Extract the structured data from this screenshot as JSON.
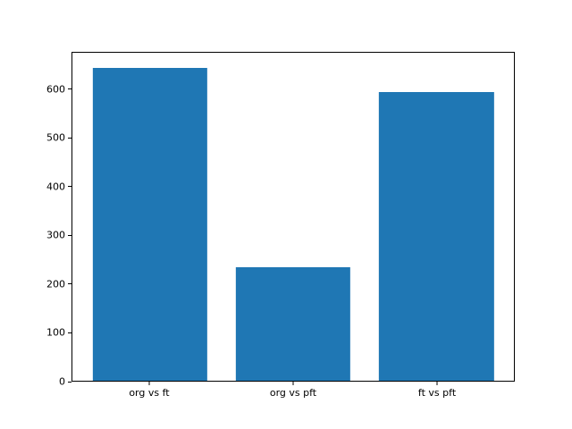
{
  "figure": {
    "background": "#ffffff",
    "frame_color": "#000000",
    "tick_color": "#000000",
    "text_color": "#000000"
  },
  "chart_data": {
    "type": "bar",
    "title": "",
    "xlabel": "",
    "ylabel": "",
    "categories": [
      "org vs ft",
      "org vs pft",
      "ft vs pft"
    ],
    "values": [
      645,
      234,
      596
    ],
    "bar_color": "#1f77b4",
    "bar_width": 0.8,
    "x_margin": 0.05,
    "ylim": [
      0,
      677
    ],
    "yticks": [
      0,
      100,
      200,
      300,
      400,
      500,
      600
    ],
    "grid": false,
    "legend": null
  }
}
